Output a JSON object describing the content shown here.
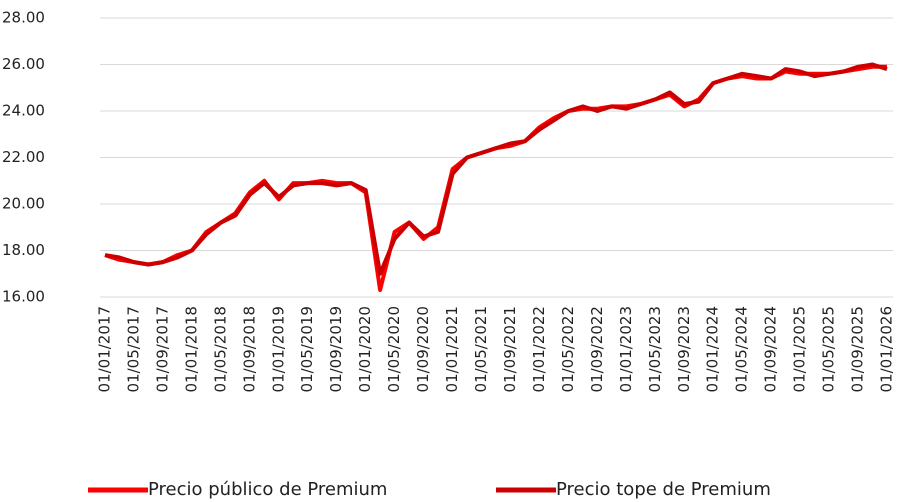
{
  "chart_data": {
    "type": "line",
    "categories": [
      "01/01/2017",
      null,
      "01/05/2017",
      null,
      "01/09/2017",
      null,
      "01/01/2018",
      null,
      "01/05/2018",
      null,
      "01/09/2018",
      null,
      "01/01/2019",
      null,
      "01/05/2019",
      null,
      "01/09/2019",
      null,
      "01/01/2020",
      null,
      "01/05/2020",
      null,
      "01/09/2020",
      null,
      "01/01/2021",
      null,
      "01/05/2021",
      null,
      "01/09/2021",
      null,
      "01/01/2022",
      null,
      "01/05/2022",
      null,
      "01/09/2022",
      null,
      "01/01/2023",
      null,
      "01/05/2023",
      null,
      "01/09/2023",
      null,
      "01/01/2024",
      null,
      "01/05/2024",
      null,
      "01/09/2024",
      null,
      "01/01/2025",
      null,
      "01/05/2025",
      null,
      "01/09/2025",
      null,
      "01/01/2026"
    ],
    "series": [
      {
        "name": "Precio público de Premium",
        "color": "#ff0000",
        "values": [
          17.8,
          17.6,
          17.5,
          17.4,
          17.5,
          17.8,
          18.0,
          18.8,
          19.2,
          19.6,
          20.5,
          21.0,
          20.2,
          20.9,
          20.9,
          21.0,
          20.9,
          20.9,
          20.5,
          16.3,
          18.8,
          19.2,
          18.5,
          19.0,
          21.5,
          22.0,
          22.2,
          22.4,
          22.5,
          22.7,
          23.3,
          23.7,
          24.0,
          24.1,
          24.1,
          24.2,
          24.2,
          24.3,
          24.5,
          24.7,
          24.2,
          24.5,
          25.2,
          25.4,
          25.5,
          25.4,
          25.4,
          25.7,
          25.6,
          25.6,
          25.6,
          25.7,
          25.8,
          25.9,
          25.9
        ]
      },
      {
        "name": "Precio tope de Premium",
        "color": "#cc0000",
        "values": [
          17.8,
          17.7,
          17.5,
          17.4,
          17.5,
          17.7,
          18.0,
          18.7,
          19.2,
          19.5,
          20.4,
          20.9,
          20.3,
          20.8,
          20.9,
          20.9,
          20.8,
          20.9,
          20.6,
          17.0,
          18.5,
          19.2,
          18.6,
          18.8,
          21.3,
          22.0,
          22.2,
          22.4,
          22.6,
          22.7,
          23.2,
          23.6,
          24.0,
          24.2,
          24.0,
          24.2,
          24.1,
          24.3,
          24.5,
          24.8,
          24.3,
          24.4,
          25.2,
          25.4,
          25.6,
          25.5,
          25.4,
          25.8,
          25.7,
          25.5,
          25.6,
          25.7,
          25.9,
          26.0,
          25.8
        ]
      }
    ],
    "ylim": [
      16,
      28
    ],
    "yticks": [
      {
        "value": 16,
        "label": "16.00"
      },
      {
        "value": 18,
        "label": "18.00"
      },
      {
        "value": 20,
        "label": "20.00"
      },
      {
        "value": 22,
        "label": "22.00"
      },
      {
        "value": 24,
        "label": "24.00"
      },
      {
        "value": 26,
        "label": "26.00"
      },
      {
        "value": 28,
        "label": "28.00"
      }
    ],
    "grid": true,
    "legend": "bottom"
  }
}
